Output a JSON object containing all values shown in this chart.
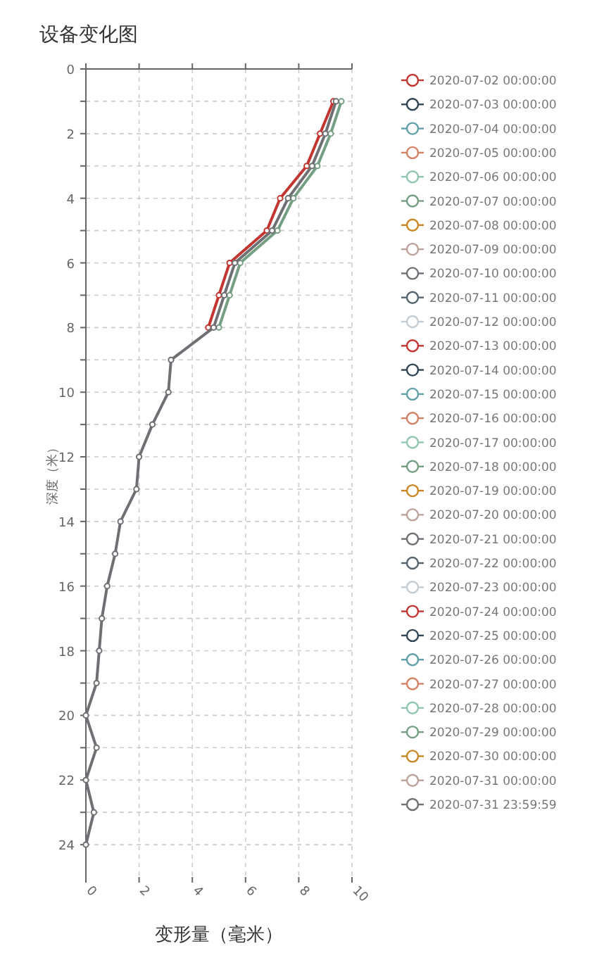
{
  "chart_data": {
    "type": "line",
    "title": "设备变化图",
    "xlabel": "变形量（毫米）",
    "ylabel": "深度（米）",
    "orientation": "horizontal",
    "grid": true,
    "legend": "right",
    "marker": "circle",
    "line_style": "solid",
    "xlim": [
      0,
      10
    ],
    "xticks": [
      0,
      2,
      4,
      6,
      8,
      10
    ],
    "ylim": [
      25,
      0
    ],
    "yticks": [
      0,
      {
        "value": 1,
        "label": null
      },
      2,
      {
        "value": 3,
        "label": null
      },
      4,
      {
        "value": 5,
        "label": null
      },
      6,
      {
        "value": 7,
        "label": null
      },
      8,
      {
        "value": 9,
        "label": null
      },
      10,
      {
        "value": 11,
        "label": null
      },
      12,
      {
        "value": 13,
        "label": null
      },
      14,
      {
        "value": 15,
        "label": null
      },
      16,
      {
        "value": 17,
        "label": null
      },
      18,
      {
        "value": 19,
        "label": null
      },
      20,
      {
        "value": 21,
        "label": null
      },
      22,
      {
        "value": 23,
        "label": null
      },
      24
    ],
    "x": [
      1,
      2,
      3,
      4,
      5,
      6,
      7,
      8,
      9,
      10,
      11,
      12,
      13,
      14,
      15,
      16,
      17,
      18,
      19,
      20,
      21,
      22,
      23,
      24
    ],
    "series": [
      {
        "name": "2020-07-02 00:00:00",
        "color": "#c23531",
        "values": [
          null,
          null,
          null,
          null,
          null,
          null,
          null,
          null,
          null,
          null,
          null,
          null,
          null,
          null,
          null,
          null,
          null,
          null,
          null,
          null,
          null,
          null,
          null,
          null
        ]
      },
      {
        "name": "2020-07-03 00:00:00",
        "color": "#2f4554",
        "values": [
          null,
          null,
          null,
          null,
          null,
          null,
          null,
          null,
          null,
          null,
          null,
          null,
          null,
          null,
          null,
          null,
          null,
          null,
          null,
          null,
          null,
          null,
          null,
          null
        ]
      },
      {
        "name": "2020-07-04 00:00:00",
        "color": "#61a0a8",
        "values": [
          null,
          null,
          null,
          null,
          null,
          null,
          null,
          null,
          null,
          null,
          null,
          null,
          null,
          null,
          null,
          null,
          null,
          null,
          null,
          null,
          null,
          null,
          null,
          null
        ]
      },
      {
        "name": "2020-07-05 00:00:00",
        "color": "#d48265",
        "values": [
          null,
          null,
          null,
          null,
          null,
          null,
          null,
          null,
          null,
          null,
          null,
          null,
          null,
          null,
          null,
          null,
          null,
          null,
          null,
          null,
          null,
          null,
          null,
          null
        ]
      },
      {
        "name": "2020-07-06 00:00:00",
        "color": "#91c7ae",
        "values": [
          null,
          null,
          null,
          null,
          null,
          null,
          null,
          null,
          null,
          null,
          null,
          null,
          null,
          null,
          null,
          null,
          null,
          null,
          null,
          null,
          null,
          null,
          null,
          null
        ]
      },
      {
        "name": "2020-07-07 00:00:00",
        "color": "#749f83",
        "values": [
          null,
          null,
          null,
          null,
          null,
          null,
          null,
          null,
          null,
          null,
          null,
          null,
          null,
          null,
          null,
          null,
          null,
          null,
          null,
          null,
          null,
          null,
          null,
          null
        ]
      },
      {
        "name": "2020-07-08 00:00:00",
        "color": "#ca8622",
        "values": [
          null,
          null,
          null,
          null,
          null,
          null,
          null,
          null,
          null,
          null,
          null,
          null,
          null,
          null,
          null,
          null,
          null,
          null,
          null,
          null,
          null,
          null,
          null,
          null
        ]
      },
      {
        "name": "2020-07-09 00:00:00",
        "color": "#bda29a",
        "values": [
          null,
          null,
          null,
          null,
          null,
          null,
          null,
          null,
          null,
          null,
          null,
          null,
          null,
          null,
          null,
          null,
          null,
          null,
          null,
          null,
          null,
          null,
          null,
          null
        ]
      },
      {
        "name": "2020-07-10 00:00:00",
        "color": "#6e7074",
        "values": [
          null,
          null,
          null,
          null,
          null,
          null,
          null,
          null,
          null,
          null,
          null,
          null,
          null,
          null,
          null,
          null,
          null,
          null,
          null,
          null,
          null,
          null,
          null,
          null
        ]
      },
      {
        "name": "2020-07-11 00:00:00",
        "color": "#546570",
        "values": [
          null,
          null,
          null,
          null,
          null,
          null,
          null,
          null,
          null,
          null,
          null,
          null,
          null,
          null,
          null,
          null,
          null,
          null,
          null,
          null,
          null,
          null,
          null,
          null
        ]
      },
      {
        "name": "2020-07-12 00:00:00",
        "color": "#c4ccd3",
        "values": [
          null,
          null,
          null,
          null,
          null,
          null,
          null,
          null,
          null,
          null,
          null,
          null,
          null,
          null,
          null,
          null,
          null,
          null,
          null,
          null,
          null,
          null,
          null,
          null
        ]
      },
      {
        "name": "2020-07-13 00:00:00",
        "color": "#c23531",
        "values": [
          null,
          null,
          null,
          null,
          null,
          null,
          null,
          null,
          null,
          null,
          null,
          null,
          null,
          null,
          null,
          null,
          null,
          null,
          null,
          null,
          null,
          null,
          null,
          null
        ]
      },
      {
        "name": "2020-07-14 00:00:00",
        "color": "#2f4554",
        "values": [
          null,
          null,
          null,
          null,
          null,
          null,
          null,
          null,
          null,
          null,
          null,
          null,
          null,
          null,
          null,
          null,
          null,
          null,
          null,
          null,
          null,
          null,
          null,
          null
        ]
      },
      {
        "name": "2020-07-15 00:00:00",
        "color": "#61a0a8",
        "values": [
          null,
          null,
          null,
          null,
          null,
          null,
          null,
          null,
          null,
          null,
          null,
          null,
          null,
          null,
          null,
          null,
          null,
          null,
          null,
          null,
          null,
          null,
          null,
          null
        ]
      },
      {
        "name": "2020-07-16 00:00:00",
        "color": "#d48265",
        "values": [
          null,
          null,
          null,
          null,
          null,
          null,
          null,
          null,
          null,
          null,
          null,
          null,
          null,
          null,
          null,
          null,
          null,
          null,
          null,
          null,
          null,
          null,
          null,
          null
        ]
      },
      {
        "name": "2020-07-17 00:00:00",
        "color": "#91c7ae",
        "values": [
          null,
          null,
          null,
          null,
          null,
          null,
          null,
          null,
          null,
          null,
          null,
          null,
          null,
          null,
          null,
          null,
          null,
          null,
          null,
          null,
          null,
          null,
          null,
          null
        ]
      },
      {
        "name": "2020-07-18 00:00:00",
        "color": "#749f83",
        "values": [
          null,
          null,
          null,
          null,
          null,
          null,
          null,
          null,
          null,
          null,
          null,
          null,
          null,
          null,
          null,
          null,
          null,
          null,
          null,
          null,
          null,
          null,
          null,
          null
        ]
      },
      {
        "name": "2020-07-19 00:00:00",
        "color": "#ca8622",
        "values": [
          null,
          null,
          null,
          null,
          null,
          null,
          null,
          null,
          null,
          null,
          null,
          null,
          null,
          null,
          null,
          null,
          null,
          null,
          null,
          null,
          null,
          null,
          null,
          null
        ]
      },
      {
        "name": "2020-07-20 00:00:00",
        "color": "#bda29a",
        "values": [
          null,
          null,
          null,
          null,
          null,
          null,
          null,
          null,
          null,
          null,
          null,
          null,
          null,
          null,
          null,
          null,
          null,
          null,
          null,
          null,
          null,
          null,
          null,
          null
        ]
      },
      {
        "name": "2020-07-21 00:00:00",
        "color": "#6e7074",
        "values": [
          null,
          null,
          null,
          null,
          null,
          null,
          null,
          null,
          null,
          null,
          null,
          null,
          null,
          null,
          null,
          null,
          null,
          null,
          null,
          null,
          null,
          null,
          null,
          null
        ]
      },
      {
        "name": "2020-07-22 00:00:00",
        "color": "#546570",
        "values": [
          null,
          null,
          null,
          null,
          null,
          null,
          null,
          null,
          null,
          null,
          null,
          null,
          null,
          null,
          null,
          null,
          null,
          null,
          null,
          null,
          null,
          null,
          null,
          null
        ]
      },
      {
        "name": "2020-07-23 00:00:00",
        "color": "#c4ccd3",
        "values": [
          null,
          null,
          null,
          null,
          null,
          null,
          null,
          null,
          null,
          null,
          null,
          null,
          null,
          null,
          null,
          null,
          null,
          null,
          null,
          null,
          null,
          null,
          null,
          null
        ]
      },
      {
        "name": "2020-07-24 00:00:00",
        "color": "#c23531",
        "values": [
          9.3,
          8.8,
          8.3,
          7.3,
          6.8,
          5.4,
          5.0,
          4.6,
          null,
          null,
          null,
          null,
          null,
          null,
          null,
          null,
          null,
          null,
          null,
          null,
          null,
          null,
          null,
          null
        ]
      },
      {
        "name": "2020-07-25 00:00:00",
        "color": "#2f4554",
        "values": [
          null,
          null,
          null,
          null,
          null,
          null,
          null,
          null,
          null,
          null,
          null,
          null,
          null,
          null,
          null,
          null,
          null,
          null,
          null,
          null,
          null,
          null,
          null,
          null
        ]
      },
      {
        "name": "2020-07-26 00:00:00",
        "color": "#61a0a8",
        "values": [
          null,
          null,
          null,
          null,
          null,
          null,
          null,
          null,
          null,
          null,
          null,
          null,
          null,
          null,
          null,
          null,
          null,
          null,
          null,
          null,
          null,
          null,
          null,
          null
        ]
      },
      {
        "name": "2020-07-27 00:00:00",
        "color": "#d48265",
        "values": [
          null,
          null,
          null,
          null,
          null,
          null,
          null,
          null,
          null,
          null,
          null,
          null,
          null,
          null,
          null,
          null,
          null,
          null,
          null,
          null,
          null,
          null,
          null,
          null
        ]
      },
      {
        "name": "2020-07-28 00:00:00",
        "color": "#91c7ae",
        "values": [
          null,
          null,
          null,
          null,
          null,
          null,
          null,
          null,
          null,
          null,
          null,
          null,
          null,
          null,
          null,
          null,
          null,
          null,
          null,
          null,
          null,
          null,
          null,
          null
        ]
      },
      {
        "name": "2020-07-29 00:00:00",
        "color": "#749f83",
        "values": [
          9.6,
          9.2,
          8.7,
          7.8,
          7.2,
          5.8,
          5.4,
          5.0,
          null,
          null,
          null,
          null,
          null,
          null,
          null,
          null,
          null,
          null,
          null,
          null,
          null,
          null,
          null,
          null
        ]
      },
      {
        "name": "2020-07-30 00:00:00",
        "color": "#ca8622",
        "values": [
          null,
          null,
          null,
          null,
          null,
          null,
          null,
          null,
          null,
          null,
          null,
          null,
          null,
          null,
          null,
          null,
          null,
          null,
          null,
          null,
          null,
          null,
          null,
          null
        ]
      },
      {
        "name": "2020-07-31 00:00:00",
        "color": "#bda29a",
        "values": [
          null,
          null,
          null,
          null,
          null,
          null,
          null,
          null,
          null,
          null,
          null,
          null,
          null,
          null,
          null,
          null,
          null,
          null,
          null,
          null,
          null,
          null,
          null,
          null
        ]
      },
      {
        "name": "2020-07-31 23:59:59",
        "color": "#6e7074",
        "values": [
          9.4,
          9.0,
          8.5,
          7.6,
          7.0,
          5.6,
          5.2,
          4.8,
          3.2,
          3.1,
          2.5,
          2.0,
          1.9,
          1.3,
          1.1,
          0.8,
          0.6,
          0.5,
          0.4,
          0,
          0.4,
          0,
          0.3,
          0
        ]
      }
    ]
  }
}
